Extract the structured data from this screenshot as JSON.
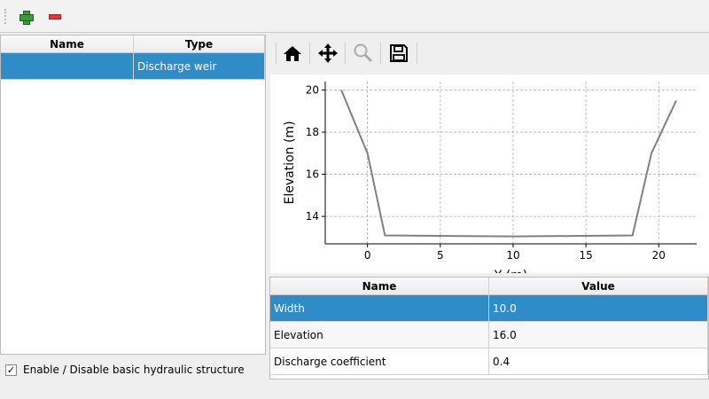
{
  "toolbar": {
    "add_icon": "plus-icon",
    "remove_icon": "minus-icon"
  },
  "structures_table": {
    "headers": [
      "Name",
      "Type"
    ],
    "rows": [
      {
        "name": "",
        "type": "Discharge weir",
        "selected": true
      }
    ]
  },
  "checkbox": {
    "label": "Enable / Disable basic hydraulic structure",
    "checked": true,
    "mark": "✓"
  },
  "plot_toolbar": {
    "icons": [
      "home-icon",
      "pan-icon",
      "zoom-icon",
      "save-icon"
    ]
  },
  "chart_data": {
    "type": "line",
    "xlabel": "Y (m)",
    "ylabel": "Elevation (m)",
    "x": [
      -1.8,
      0,
      1.2,
      10,
      18.2,
      19.5,
      21.2
    ],
    "y": [
      20,
      17,
      13.1,
      13.05,
      13.1,
      17,
      19.5
    ],
    "xlim": [
      -2.9,
      22.6
    ],
    "ylim": [
      12.7,
      20.4
    ],
    "xticks": [
      0,
      5,
      10,
      15,
      20
    ],
    "yticks": [
      14,
      16,
      18,
      20
    ],
    "grid": true,
    "line_color": "#808080"
  },
  "params_table": {
    "headers": [
      "Name",
      "Value"
    ],
    "rows": [
      {
        "name": "Width",
        "value": "10.0",
        "selected": true
      },
      {
        "name": "Elevation",
        "value": "16.0"
      },
      {
        "name": "Discharge coefficient",
        "value": "0.4"
      }
    ]
  }
}
